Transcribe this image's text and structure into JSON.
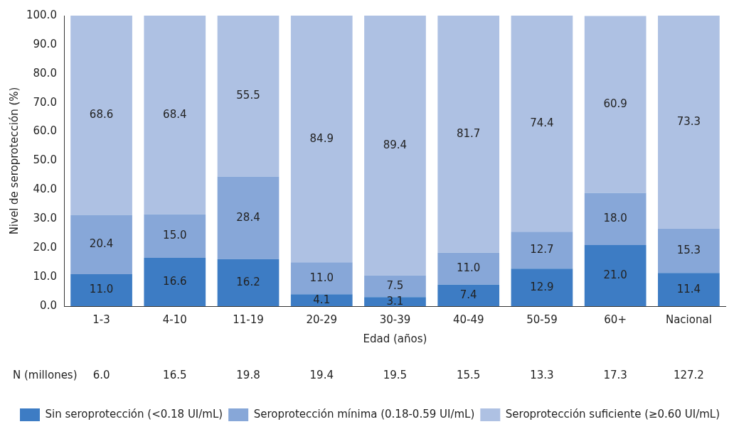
{
  "chart_data": {
    "type": "bar",
    "stacked": true,
    "xlabel": "Edad (años)",
    "ylabel": "Nivel de seroprotección (%)",
    "categories": [
      "1-3",
      "4-10",
      "11-19",
      "20-29",
      "30-39",
      "40-49",
      "50-59",
      "60+",
      "Nacional"
    ],
    "series": [
      {
        "name": "Sin seroprotección (<0.18 UI/mL)",
        "color": "#3d7cc4",
        "values": [
          11.0,
          16.6,
          16.2,
          4.1,
          3.1,
          7.4,
          12.9,
          21.0,
          11.4
        ],
        "value_labels": [
          "11.0",
          "16.6",
          "16.2",
          "4.1",
          "3.1",
          "7.4",
          "12.9",
          "21.0",
          "11.4"
        ]
      },
      {
        "name": "Seroprotección mínima (0.18-0.59 UI/mL)",
        "color": "#87a7d8",
        "values": [
          20.4,
          15.0,
          28.4,
          11.0,
          7.5,
          11.0,
          12.7,
          18.0,
          15.3
        ],
        "value_labels": [
          "20.4",
          "15.0",
          "28.4",
          "11.0",
          "7.5",
          "11.0",
          "12.7",
          "18.0",
          "15.3"
        ]
      },
      {
        "name": "Seroprotección suficiente (≥0.60 UI/mL)",
        "color": "#aec1e3",
        "values": [
          68.6,
          68.4,
          55.5,
          84.9,
          89.4,
          81.7,
          74.4,
          60.9,
          73.3
        ],
        "value_labels": [
          "68.6",
          "68.4",
          "55.5",
          "84.9",
          "89.4",
          "81.7",
          "74.4",
          "60.9",
          "73.3"
        ]
      }
    ],
    "ylim": [
      0,
      100
    ],
    "yticks": [
      {
        "value": 0,
        "label": "0.0"
      },
      {
        "value": 10,
        "label": "10.0"
      },
      {
        "value": 20,
        "label": "20.0"
      },
      {
        "value": 30,
        "label": "30.0"
      },
      {
        "value": 40,
        "label": "40.0"
      },
      {
        "value": 50,
        "label": "50.0"
      },
      {
        "value": 60,
        "label": "60.0"
      },
      {
        "value": 70,
        "label": "70.0"
      },
      {
        "value": 80,
        "label": "80.0"
      },
      {
        "value": 90,
        "label": "90.0"
      },
      {
        "value": 100,
        "label": "100.0"
      }
    ],
    "grid": false,
    "legend": "bottom",
    "annotations": [
      "N (millones)",
      "6.0",
      "16.5",
      "19.8",
      "19.4",
      "19.5",
      "15.5",
      "13.3",
      "17.3",
      "127.2"
    ]
  }
}
